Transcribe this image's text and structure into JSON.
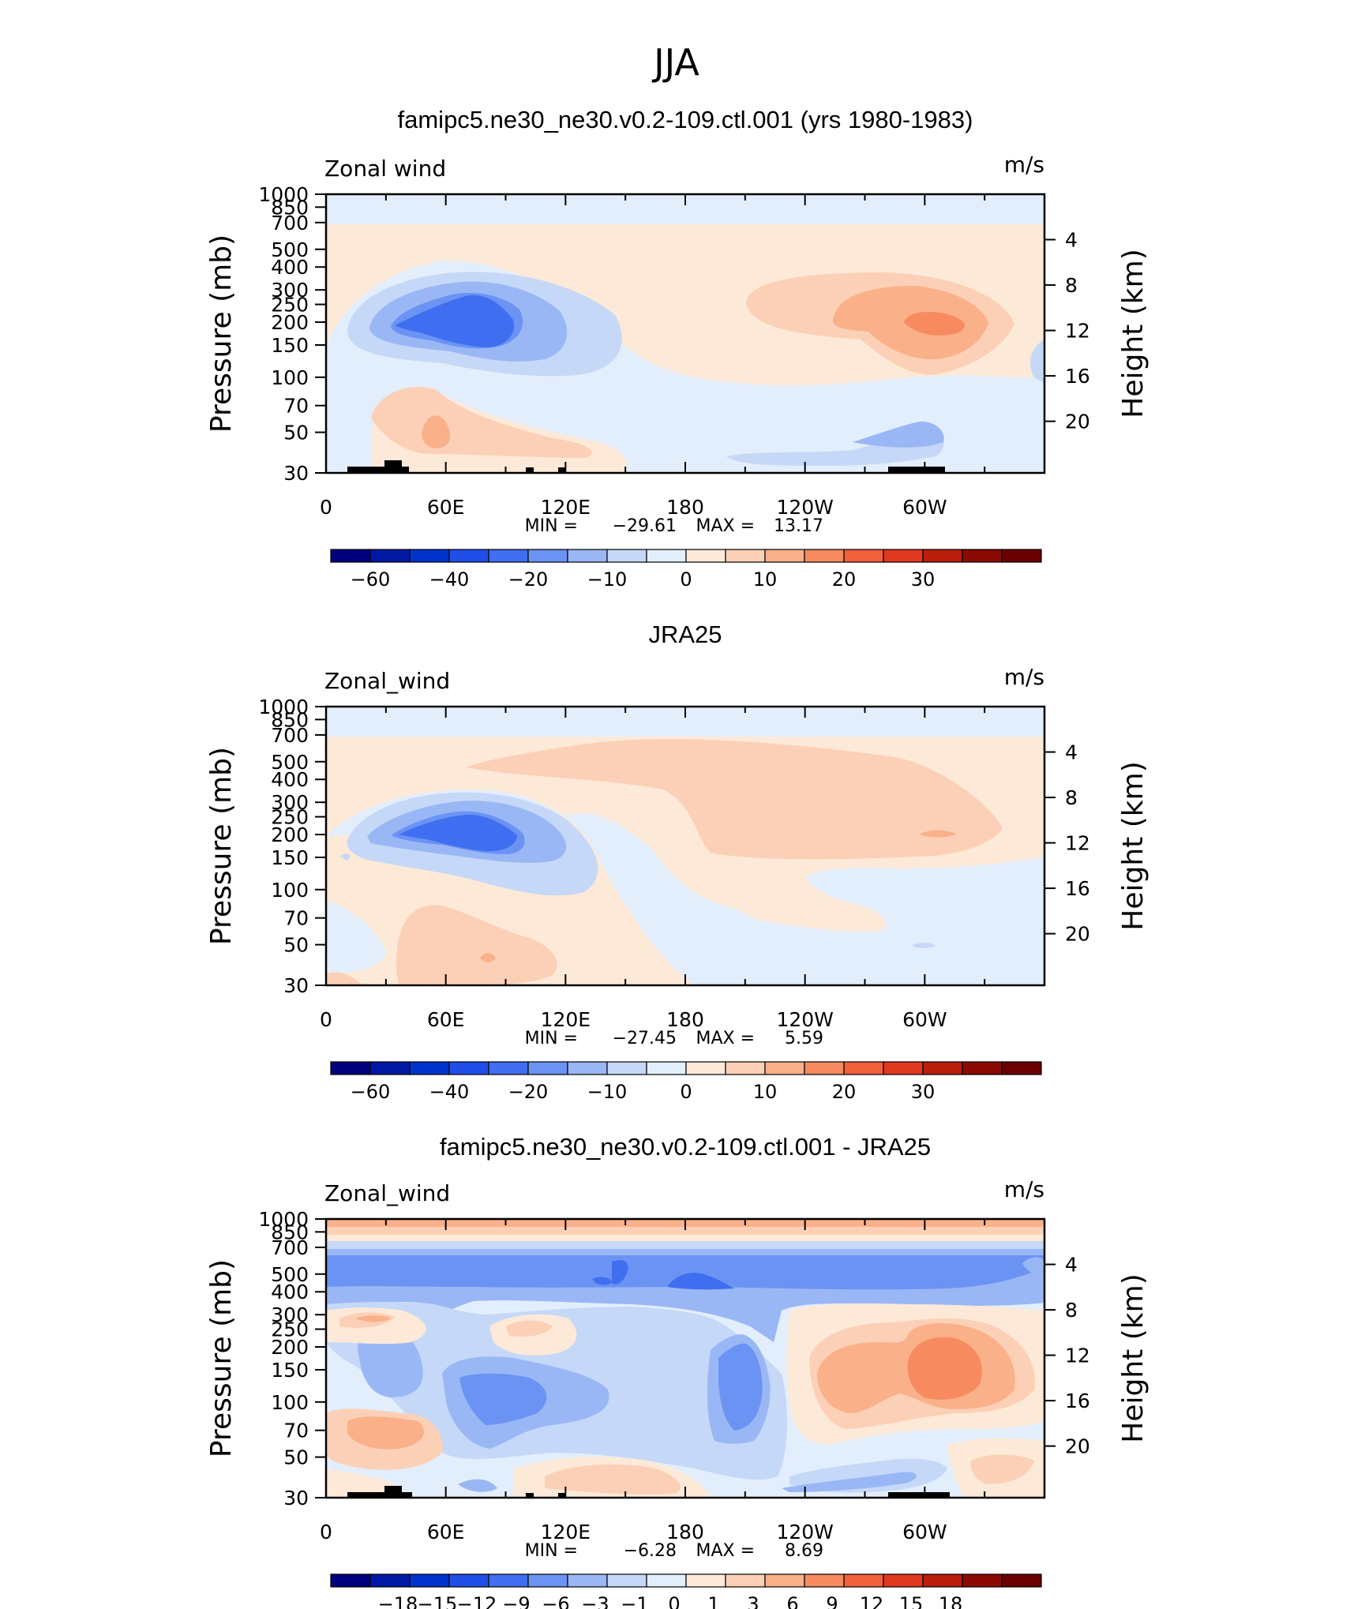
{
  "page_title": "JJA",
  "colors": {
    "wind_scale": [
      "#00007f",
      "#001aa6",
      "#0033cc",
      "#1f4fe8",
      "#3f6ff0",
      "#6b93f4",
      "#9ab7f5",
      "#c6d8f8",
      "#e3eefc",
      "#fde9d8",
      "#fcd0b6",
      "#fab089",
      "#f78a5f",
      "#f2603b",
      "#e0391f",
      "#b81d0c",
      "#8c0a04",
      "#6b0000"
    ],
    "diff_scale": [
      "#00007f",
      "#001aa6",
      "#0033cc",
      "#1f4fe8",
      "#3f6ff0",
      "#6b93f4",
      "#9ab7f5",
      "#c6d8f8",
      "#e3eefc",
      "#fde9d8",
      "#fcd0b6",
      "#fab089",
      "#f78a5f",
      "#f2603b",
      "#e0391f",
      "#b81d0c",
      "#8c0a04",
      "#6b0000"
    ]
  },
  "chart_data": [
    {
      "type": "heatmap",
      "title": "famipc5.ne30_ne30.v0.2-109.ctl.001 (yrs 1980-1983)",
      "field_label": "Zonal wind",
      "units": "m/s",
      "ylabel": "Pressure (mb)",
      "ylabel2": "Height (km)",
      "x_ticks": [
        "0",
        "60E",
        "120E",
        "180",
        "120W",
        "60W"
      ],
      "y_ticks": [
        "30",
        "50",
        "70",
        "100",
        "150",
        "200",
        "250",
        "300",
        "400",
        "500",
        "700",
        "850",
        "1000"
      ],
      "y2_ticks": [
        "20",
        "16",
        "12",
        "8",
        "4"
      ],
      "min_label": "MIN =",
      "min_value": "−29.61",
      "max_label": "MAX =",
      "max_value": "13.17",
      "colorbar_labels": [
        "−60",
        "−40",
        "−20",
        "−10",
        "0",
        "10",
        "20",
        "30"
      ]
    },
    {
      "type": "heatmap",
      "title": "JRA25",
      "field_label": "Zonal_wind",
      "units": "m/s",
      "ylabel": "Pressure (mb)",
      "ylabel2": "Height (km)",
      "x_ticks": [
        "0",
        "60E",
        "120E",
        "180",
        "120W",
        "60W"
      ],
      "y_ticks": [
        "30",
        "50",
        "70",
        "100",
        "150",
        "200",
        "250",
        "300",
        "400",
        "500",
        "700",
        "850",
        "1000"
      ],
      "y2_ticks": [
        "20",
        "16",
        "12",
        "8",
        "4"
      ],
      "min_label": "MIN =",
      "min_value": "−27.45",
      "max_label": "MAX =",
      "max_value": "5.59",
      "colorbar_labels": [
        "−60",
        "−40",
        "−20",
        "−10",
        "0",
        "10",
        "20",
        "30"
      ]
    },
    {
      "type": "heatmap",
      "title": "famipc5.ne30_ne30.v0.2-109.ctl.001 - JRA25",
      "field_label": "Zonal_wind",
      "units": "m/s",
      "ylabel": "Pressure (mb)",
      "ylabel2": "Height (km)",
      "x_ticks": [
        "0",
        "60E",
        "120E",
        "180",
        "120W",
        "60W"
      ],
      "y_ticks": [
        "30",
        "50",
        "70",
        "100",
        "150",
        "200",
        "250",
        "300",
        "400",
        "500",
        "700",
        "850",
        "1000"
      ],
      "y2_ticks": [
        "20",
        "16",
        "12",
        "8",
        "4"
      ],
      "min_label": "MIN =",
      "min_value": "−6.28",
      "max_label": "MAX =",
      "max_value": "8.69",
      "colorbar_labels": [
        "−18",
        "−15",
        "−12",
        "−9",
        "−6",
        "−3",
        "−1",
        "0",
        "1",
        "3",
        "6",
        "9",
        "12",
        "15",
        "18"
      ]
    }
  ]
}
